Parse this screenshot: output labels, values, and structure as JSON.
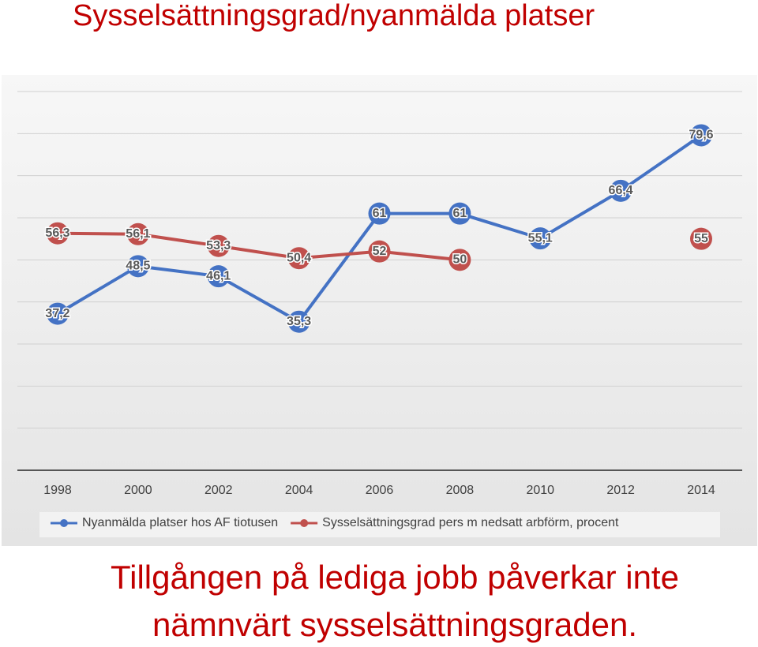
{
  "chart_data": {
    "type": "line",
    "title": "Sysselsättningsgrad/nyanmälda platser",
    "caption": [
      "Tillgången på lediga jobb påverkar inte",
      "nämnvärt sysselsättningsgraden."
    ],
    "x": [
      1998,
      2000,
      2002,
      2004,
      2006,
      2008,
      2010,
      2012,
      2014
    ],
    "xlim": [
      1998,
      2014
    ],
    "xticks": [
      1998,
      2000,
      2002,
      2004,
      2006,
      2008,
      2010,
      2012,
      2014
    ],
    "ylim": [
      0,
      90
    ],
    "yticks": [
      0,
      10,
      20,
      30,
      40,
      50,
      60,
      70,
      80,
      90
    ],
    "grid": true,
    "legend": "bottom",
    "series": [
      {
        "name": "Nyanmälda platser hos AF tiotusen",
        "color": "#4472c4",
        "values": [
          37.2,
          48.5,
          46.1,
          35.3,
          61,
          61,
          55.1,
          66.4,
          79.6
        ],
        "value_labels": [
          "37,2",
          "48,5",
          "46,1",
          "35,3",
          "61",
          "61",
          "55,1",
          "66,4",
          "79,6"
        ]
      },
      {
        "name": "Sysselsättningsgrad pers m nedsatt arbförm, procent",
        "color": "#c0504d",
        "values": [
          56.3,
          56.1,
          53.3,
          50.4,
          52,
          50,
          null,
          null,
          55
        ],
        "value_labels": [
          "56,3",
          "56,1",
          "53,3",
          "50,4",
          "52",
          "50",
          null,
          null,
          "55"
        ]
      }
    ]
  }
}
